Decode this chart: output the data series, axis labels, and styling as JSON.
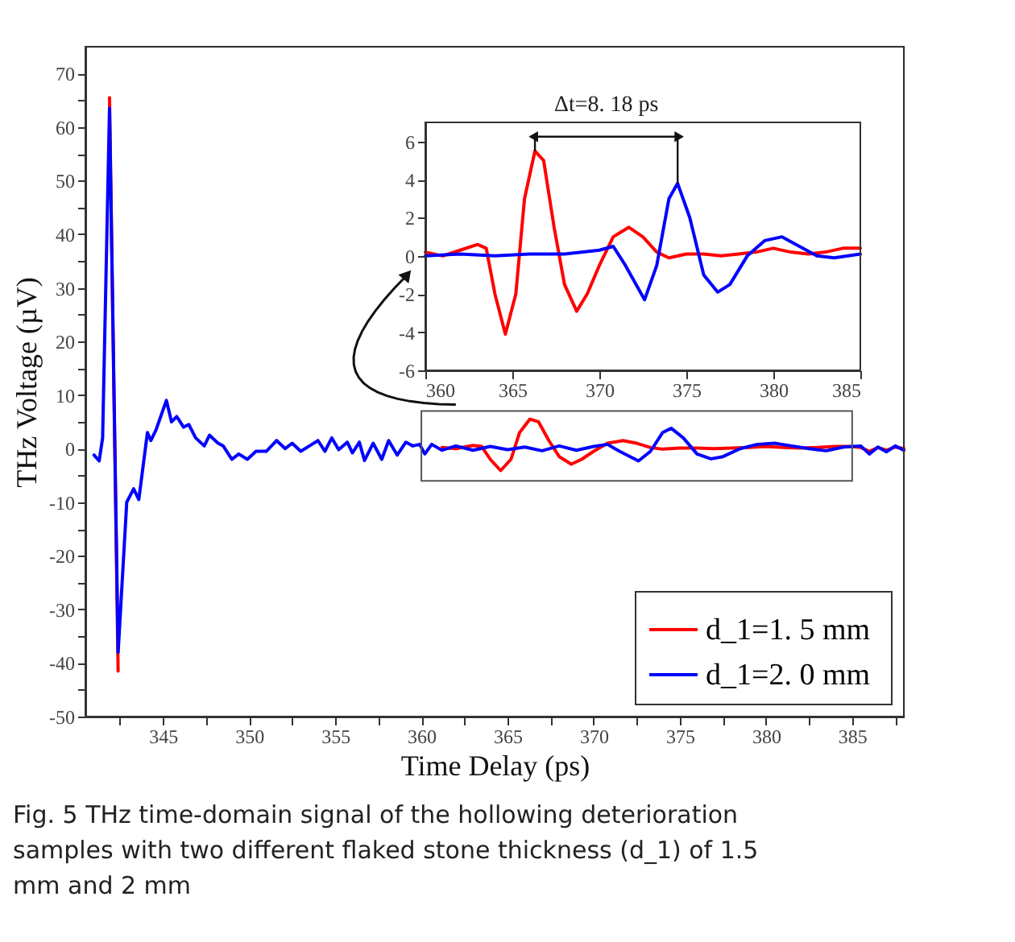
{
  "chart_data": [
    {
      "type": "line",
      "xlabel": "Time Delay (ps)",
      "ylabel": "THz Voltage (µV)",
      "xlim": [
        340.5,
        388
      ],
      "xticks": [
        {
          "value": 342.5,
          "label": null
        },
        345,
        {
          "value": 347.5,
          "label": null
        },
        350,
        {
          "value": 352.5,
          "label": null
        },
        355,
        {
          "value": 357.5,
          "label": null
        },
        360,
        {
          "value": 362.5,
          "label": null
        },
        365,
        {
          "value": 367.5,
          "label": null
        },
        370,
        {
          "value": 372.5,
          "label": null
        },
        375,
        {
          "value": 377.5,
          "label": null
        },
        380,
        {
          "value": 382.5,
          "label": null
        },
        385,
        {
          "value": 387.5,
          "label": null
        }
      ],
      "ylim": [
        -50,
        75
      ],
      "yticks": [
        -50,
        {
          "value": -45,
          "label": null
        },
        -40,
        {
          "value": -35,
          "label": null
        },
        -30,
        {
          "value": -25,
          "label": null
        },
        -20,
        {
          "value": -15,
          "label": null
        },
        -10,
        {
          "value": -5,
          "label": null
        },
        0,
        {
          "value": 5,
          "label": null
        },
        10,
        {
          "value": 15,
          "label": null
        },
        20,
        {
          "value": 25,
          "label": null
        },
        30,
        {
          "value": 35,
          "label": null
        },
        40,
        {
          "value": 45,
          "label": null
        },
        50,
        {
          "value": 55,
          "label": null
        },
        60,
        {
          "value": 65,
          "label": null
        },
        70
      ],
      "grid": false,
      "legend": "bottom right",
      "series": [
        {
          "name": "d_1=1. 5  mm",
          "color": "#ff0000",
          "x": [
            341.9,
            342.4,
            342.9,
            343.3,
            343.6,
            344.1,
            344.3,
            344.6,
            345.2,
            345.5,
            345.8,
            346.2,
            346.5,
            346.9,
            347.4,
            347.7,
            348.2,
            348.5,
            349.0,
            349.4,
            349.9,
            350.4,
            351.0,
            351.3,
            351.6,
            352.1,
            352.5,
            353.0,
            353.5,
            354.0,
            354.4,
            354.8,
            355.2,
            355.7,
            356.0,
            356.4,
            356.7,
            357.2,
            357.7,
            358.1,
            358.6,
            359.1,
            359.5,
            359.9,
            360.2,
            360.6,
            361.2,
            362,
            363,
            363.5,
            364,
            364.6,
            365.2,
            365.7,
            366.3,
            366.8,
            367.4,
            368,
            368.7,
            369.3,
            370,
            370.8,
            371.7,
            372.5,
            373.3,
            374,
            375,
            376,
            377,
            378,
            379,
            380,
            381,
            382,
            383,
            384,
            385,
            385.5,
            386,
            386.5,
            387,
            387.5,
            388
          ],
          "values": [
            65.5,
            -41.5,
            null,
            null,
            null,
            null,
            null,
            null,
            null,
            null,
            null,
            null,
            null,
            null,
            null,
            null,
            null,
            null,
            null,
            null,
            null,
            null,
            null,
            null,
            null,
            null,
            null,
            null,
            null,
            null,
            null,
            null,
            null,
            null,
            null,
            null,
            null,
            null,
            null,
            null,
            null,
            null,
            null,
            null,
            null,
            null,
            0.2,
            0,
            0.6,
            0.4,
            -2,
            -4.1,
            -2,
            3,
            5.5,
            5,
            1.5,
            -1.5,
            -2.9,
            -2,
            -0.5,
            1,
            1.5,
            1,
            0.2,
            -0.1,
            0.1,
            0.1,
            0,
            0.1,
            0.2,
            0.4,
            0.2,
            0.1,
            0.2,
            0.4,
            0.4,
            0.2,
            -0.5,
            0.2,
            -0.3,
            0.3,
            0
          ]
        },
        {
          "name": "d_1=2. 0  mm",
          "color": "#0000ff",
          "x": [
            341.0,
            341.3,
            341.5,
            341.9,
            342.4,
            342.9,
            343.3,
            343.6,
            344.1,
            344.3,
            344.6,
            345.2,
            345.5,
            345.8,
            346.2,
            346.5,
            346.9,
            347.4,
            347.7,
            348.2,
            348.5,
            349.0,
            349.4,
            349.9,
            350.4,
            351.0,
            351.3,
            351.6,
            352.1,
            352.5,
            353.0,
            353.5,
            354.0,
            354.4,
            354.8,
            355.2,
            355.7,
            356.0,
            356.4,
            356.7,
            357.2,
            357.7,
            358.1,
            358.6,
            359.1,
            359.5,
            359.9,
            360.2,
            360.6,
            361.2,
            362,
            363,
            364,
            365,
            366,
            367,
            368,
            369,
            370,
            370.8,
            371.5,
            372.6,
            373.3,
            374,
            374.5,
            375.2,
            376,
            376.8,
            377.5,
            378.5,
            379.5,
            380.5,
            381.5,
            382.5,
            383.5,
            384.5,
            385.5,
            386,
            386.5,
            387,
            387.5,
            388
          ],
          "values": [
            -1.2,
            -2.3,
            2,
            63.5,
            -38,
            -10,
            -7.5,
            -9.5,
            3,
            1.5,
            3.5,
            9,
            5,
            6,
            4,
            4.5,
            2,
            0.5,
            2.5,
            1,
            0.5,
            -2,
            -1,
            -2,
            -0.5,
            -0.5,
            0.5,
            1.5,
            0,
            1,
            -0.5,
            0.5,
            1.5,
            -0.5,
            2,
            -0.2,
            1.2,
            -0.8,
            1.2,
            -2.2,
            1,
            -2,
            1.5,
            -1.2,
            1.2,
            0.5,
            0.8,
            -1,
            0.8,
            -0.3,
            0.5,
            -0.3,
            0.4,
            -0.2,
            0.3,
            -0.4,
            0.5,
            -0.3,
            0.4,
            0.8,
            -0.5,
            -2.3,
            -0.5,
            3,
            3.8,
            2,
            -1,
            -1.9,
            -1.5,
            0,
            0.8,
            1,
            0.5,
            0,
            -0.4,
            0.3,
            0.5,
            -1,
            0.3,
            -0.6,
            0.5,
            -0.3
          ]
        }
      ],
      "annotations": [
        "Fig. 5  THz time-domain signal of the hollowing deterioration samples with two different flaked stone thickness (d_1) of 1.5 mm and 2 mm"
      ]
    },
    {
      "type": "line",
      "xlim": [
        360,
        385
      ],
      "xticks": [
        360,
        365,
        370,
        375,
        380,
        385
      ],
      "ylim": [
        -6,
        7
      ],
      "yticks": [
        -6,
        -4,
        -2,
        0,
        2,
        4,
        6
      ],
      "grid": false,
      "series": [
        {
          "color": "#ff0000",
          "x": [
            360,
            361,
            362,
            363,
            363.5,
            364,
            364.6,
            365.2,
            365.7,
            366.3,
            366.8,
            367.4,
            368,
            368.7,
            369.3,
            370,
            370.8,
            371.7,
            372.5,
            373.3,
            374,
            375,
            376,
            377,
            378,
            379,
            380,
            381,
            382,
            383,
            384,
            385
          ],
          "values": [
            0.2,
            0,
            0.3,
            0.6,
            0.4,
            -2,
            -4.1,
            -2,
            3,
            5.5,
            5,
            1.5,
            -1.5,
            -2.9,
            -2,
            -0.5,
            1,
            1.5,
            1,
            0.2,
            -0.1,
            0.1,
            0.1,
            0,
            0.1,
            0.2,
            0.4,
            0.2,
            0.1,
            0.2,
            0.4,
            0.4
          ]
        },
        {
          "color": "#0000ff",
          "x": [
            360,
            362,
            364,
            366,
            368,
            370,
            370.8,
            371.5,
            372.6,
            373.3,
            374,
            374.5,
            375.2,
            376,
            376.8,
            377.5,
            378.5,
            379.5,
            380.5,
            381.5,
            382.5,
            383.5,
            385
          ],
          "values": [
            0,
            0.1,
            0,
            0.1,
            0.1,
            0.3,
            0.5,
            -0.5,
            -2.3,
            -0.5,
            3,
            3.8,
            2,
            -1,
            -1.9,
            -1.5,
            0,
            0.8,
            1,
            0.5,
            0,
            -0.1,
            0.1
          ]
        }
      ],
      "annotations": [
        {
          "text": "Δt=8. 18 ps",
          "x": 366.3,
          "y": 5.5
        }
      ]
    }
  ]
}
